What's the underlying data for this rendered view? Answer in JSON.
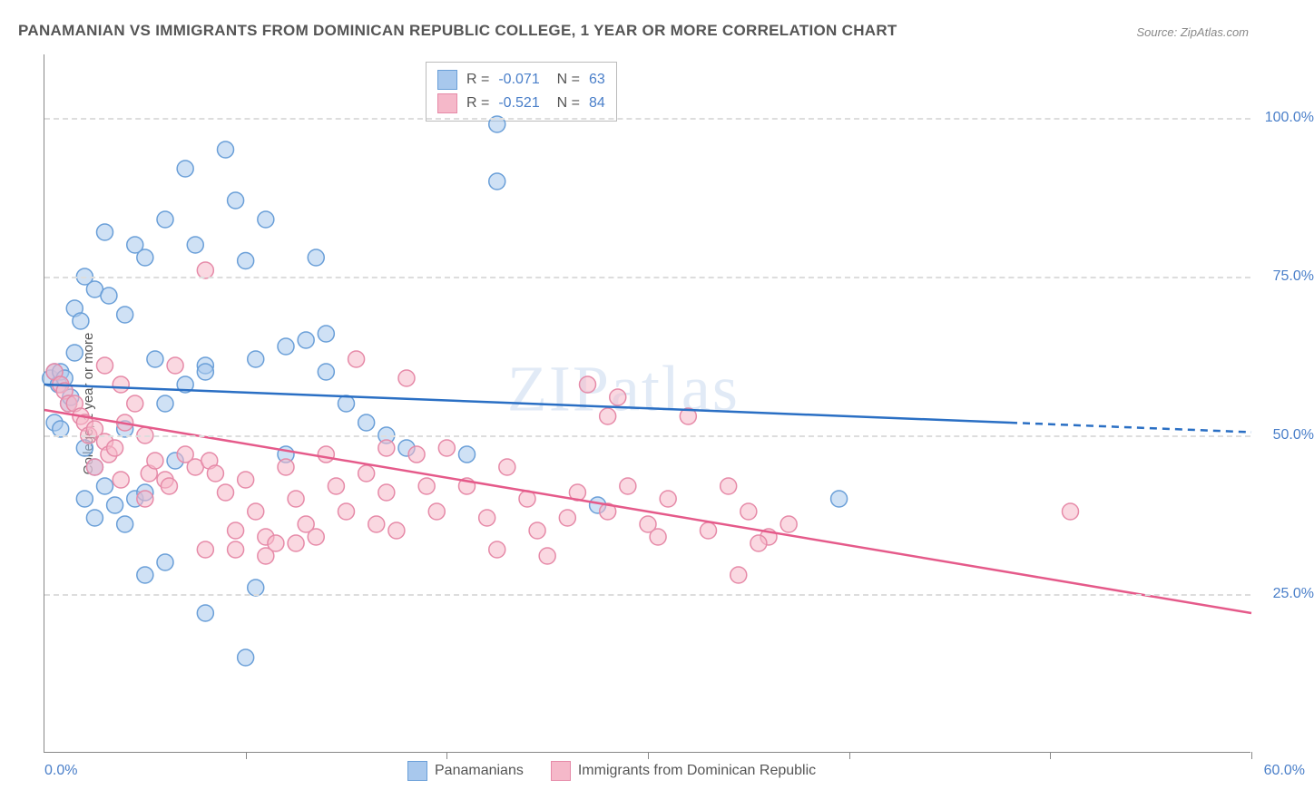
{
  "title": "PANAMANIAN VS IMMIGRANTS FROM DOMINICAN REPUBLIC COLLEGE, 1 YEAR OR MORE CORRELATION CHART",
  "source": "Source: ZipAtlas.com",
  "ylabel": "College, 1 year or more",
  "watermark": "ZIPatlas",
  "xlim": [
    0,
    60
  ],
  "ylim": [
    0,
    110
  ],
  "ytick_labels": [
    "25.0%",
    "50.0%",
    "75.0%",
    "100.0%"
  ],
  "ytick_vals": [
    25,
    50,
    75,
    100
  ],
  "xtick_vals": [
    0,
    10,
    20,
    30,
    40,
    50,
    60
  ],
  "xaxis_min_label": "0.0%",
  "xaxis_max_label": "60.0%",
  "series": [
    {
      "name": "Panamanians",
      "color_fill": "#a8c8ed",
      "color_stroke": "#6a9fd8",
      "line_color": "#2a6fc4",
      "R": "-0.071",
      "N": "63",
      "reg_start": [
        0,
        58
      ],
      "reg_solid_end": [
        48,
        52
      ],
      "reg_dash_end": [
        60,
        50.5
      ],
      "points": [
        [
          0.3,
          59
        ],
        [
          0.5,
          60
        ],
        [
          0.7,
          58
        ],
        [
          0.8,
          60
        ],
        [
          1.0,
          59
        ],
        [
          1.2,
          55
        ],
        [
          1.3,
          56
        ],
        [
          0.5,
          52
        ],
        [
          0.8,
          51
        ],
        [
          1.5,
          70
        ],
        [
          1.8,
          68
        ],
        [
          2.0,
          75
        ],
        [
          2.5,
          73
        ],
        [
          3.0,
          82
        ],
        [
          3.2,
          72
        ],
        [
          4.0,
          69
        ],
        [
          4.5,
          80
        ],
        [
          5.0,
          78
        ],
        [
          5.5,
          62
        ],
        [
          6.0,
          84
        ],
        [
          7.0,
          92
        ],
        [
          7.5,
          80
        ],
        [
          8.0,
          61
        ],
        [
          9.0,
          95
        ],
        [
          9.5,
          87
        ],
        [
          10.0,
          77.5
        ],
        [
          2.0,
          48
        ],
        [
          2.5,
          45
        ],
        [
          3.0,
          42
        ],
        [
          3.5,
          39
        ],
        [
          4.0,
          36
        ],
        [
          4.5,
          40
        ],
        [
          5.0,
          41
        ],
        [
          6.0,
          55
        ],
        [
          7.0,
          58
        ],
        [
          8.0,
          60
        ],
        [
          10.5,
          62
        ],
        [
          11.0,
          84
        ],
        [
          12.0,
          64
        ],
        [
          13.0,
          65
        ],
        [
          13.5,
          78
        ],
        [
          14.0,
          60
        ],
        [
          15.0,
          55
        ],
        [
          16.0,
          52
        ],
        [
          17.0,
          50
        ],
        [
          18.0,
          48
        ],
        [
          5.0,
          28
        ],
        [
          6.0,
          30
        ],
        [
          8.0,
          22
        ],
        [
          10.0,
          15
        ],
        [
          10.5,
          26
        ],
        [
          22.5,
          99
        ],
        [
          22.5,
          90
        ],
        [
          2.0,
          40
        ],
        [
          2.5,
          37
        ],
        [
          4.0,
          51
        ],
        [
          6.5,
          46
        ],
        [
          14.0,
          66
        ],
        [
          21.0,
          47
        ],
        [
          27.5,
          39
        ],
        [
          39.5,
          40
        ],
        [
          1.5,
          63
        ],
        [
          12.0,
          47
        ]
      ]
    },
    {
      "name": "Immigrants from Dominican Republic",
      "color_fill": "#f5b8c9",
      "color_stroke": "#e68aa8",
      "line_color": "#e55a8a",
      "R": "-0.521",
      "N": "84",
      "reg_start": [
        0,
        54
      ],
      "reg_solid_end": [
        60,
        22
      ],
      "reg_dash_end": null,
      "points": [
        [
          0.5,
          60
        ],
        [
          0.8,
          58
        ],
        [
          1.0,
          57
        ],
        [
          1.2,
          55
        ],
        [
          1.5,
          55
        ],
        [
          1.8,
          53
        ],
        [
          2.0,
          52
        ],
        [
          2.2,
          50
        ],
        [
          2.5,
          51
        ],
        [
          3.0,
          49
        ],
        [
          3.2,
          47
        ],
        [
          3.5,
          48
        ],
        [
          3.8,
          58
        ],
        [
          4.0,
          52
        ],
        [
          4.5,
          55
        ],
        [
          5.0,
          50
        ],
        [
          5.2,
          44
        ],
        [
          5.5,
          46
        ],
        [
          6.0,
          43
        ],
        [
          6.5,
          61
        ],
        [
          7.0,
          47
        ],
        [
          7.5,
          45
        ],
        [
          8.0,
          76
        ],
        [
          8.2,
          46
        ],
        [
          8.5,
          44
        ],
        [
          9.0,
          41
        ],
        [
          9.5,
          35
        ],
        [
          10.0,
          43
        ],
        [
          10.5,
          38
        ],
        [
          11.0,
          34
        ],
        [
          11.5,
          33
        ],
        [
          12.0,
          45
        ],
        [
          12.5,
          40
        ],
        [
          13.0,
          36
        ],
        [
          13.5,
          34
        ],
        [
          14.0,
          47
        ],
        [
          14.5,
          42
        ],
        [
          15.0,
          38
        ],
        [
          15.5,
          62
        ],
        [
          16.0,
          44
        ],
        [
          16.5,
          36
        ],
        [
          17.0,
          41
        ],
        [
          17.5,
          35
        ],
        [
          18.0,
          59
        ],
        [
          18.5,
          47
        ],
        [
          19.0,
          42
        ],
        [
          19.5,
          38
        ],
        [
          20.0,
          48
        ],
        [
          21.0,
          42
        ],
        [
          22.0,
          37
        ],
        [
          22.5,
          32
        ],
        [
          23.0,
          45
        ],
        [
          24.0,
          40
        ],
        [
          24.5,
          35
        ],
        [
          25.0,
          31
        ],
        [
          26.0,
          37
        ],
        [
          26.5,
          41
        ],
        [
          27.0,
          58
        ],
        [
          28.0,
          38
        ],
        [
          28.5,
          56
        ],
        [
          29.0,
          42
        ],
        [
          30.0,
          36
        ],
        [
          30.5,
          34
        ],
        [
          31.0,
          40
        ],
        [
          32.0,
          53
        ],
        [
          33.0,
          35
        ],
        [
          34.0,
          42
        ],
        [
          34.5,
          28
        ],
        [
          35.0,
          38
        ],
        [
          36.0,
          34
        ],
        [
          28.0,
          53
        ],
        [
          8.0,
          32
        ],
        [
          9.5,
          32
        ],
        [
          11.0,
          31
        ],
        [
          12.5,
          33
        ],
        [
          2.5,
          45
        ],
        [
          3.8,
          43
        ],
        [
          5.0,
          40
        ],
        [
          6.2,
          42
        ],
        [
          51.0,
          38
        ],
        [
          35.5,
          33
        ],
        [
          37.0,
          36
        ],
        [
          3.0,
          61
        ],
        [
          17.0,
          48
        ]
      ]
    }
  ],
  "marker_radius": 9,
  "marker_opacity": 0.55,
  "line_width": 2.5,
  "background_color": "#ffffff",
  "grid_color": "#dddddd"
}
